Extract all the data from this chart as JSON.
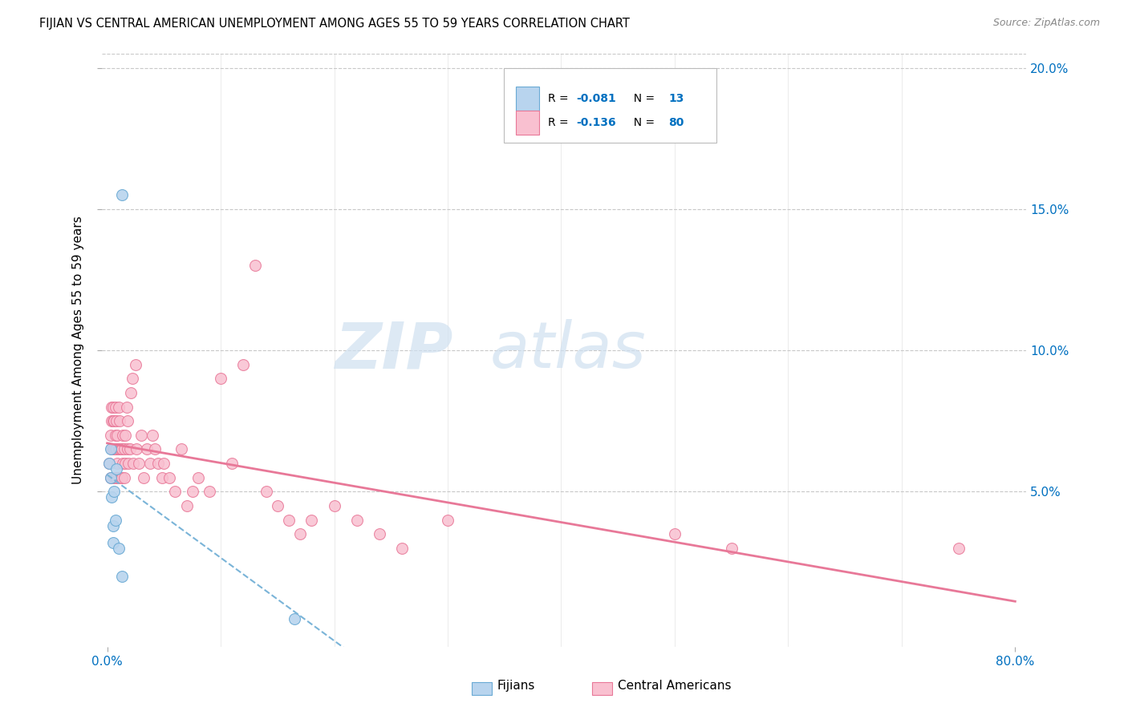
{
  "title": "FIJIAN VS CENTRAL AMERICAN UNEMPLOYMENT AMONG AGES 55 TO 59 YEARS CORRELATION CHART",
  "source": "Source: ZipAtlas.com",
  "ylabel": "Unemployment Among Ages 55 to 59 years",
  "fijian_color": "#b8d4ee",
  "fijian_edge_color": "#6aaad4",
  "central_color": "#f9c0d0",
  "central_edge_color": "#e87898",
  "trend_fijian_color": "#7ab4d8",
  "trend_central_color": "#e87898",
  "R_fijian": -0.081,
  "N_fijian": 13,
  "R_central": -0.136,
  "N_central": 80,
  "fijian_x": [
    0.002,
    0.003,
    0.003,
    0.004,
    0.005,
    0.005,
    0.006,
    0.007,
    0.008,
    0.01,
    0.013,
    0.013,
    0.165
  ],
  "fijian_y": [
    0.06,
    0.065,
    0.055,
    0.048,
    0.038,
    0.032,
    0.05,
    0.04,
    0.058,
    0.03,
    0.02,
    0.155,
    0.005
  ],
  "central_x": [
    0.002,
    0.003,
    0.003,
    0.004,
    0.004,
    0.004,
    0.005,
    0.005,
    0.005,
    0.006,
    0.006,
    0.006,
    0.007,
    0.007,
    0.007,
    0.007,
    0.008,
    0.008,
    0.008,
    0.009,
    0.009,
    0.01,
    0.01,
    0.01,
    0.011,
    0.011,
    0.012,
    0.012,
    0.013,
    0.013,
    0.014,
    0.014,
    0.015,
    0.015,
    0.016,
    0.016,
    0.017,
    0.018,
    0.018,
    0.019,
    0.02,
    0.021,
    0.022,
    0.023,
    0.025,
    0.026,
    0.028,
    0.03,
    0.032,
    0.035,
    0.038,
    0.04,
    0.042,
    0.045,
    0.048,
    0.05,
    0.055,
    0.06,
    0.065,
    0.07,
    0.075,
    0.08,
    0.09,
    0.1,
    0.11,
    0.12,
    0.13,
    0.14,
    0.15,
    0.16,
    0.17,
    0.18,
    0.2,
    0.22,
    0.24,
    0.26,
    0.3,
    0.5,
    0.55,
    0.75
  ],
  "central_y": [
    0.06,
    0.055,
    0.07,
    0.065,
    0.075,
    0.08,
    0.065,
    0.075,
    0.08,
    0.055,
    0.065,
    0.075,
    0.055,
    0.065,
    0.07,
    0.08,
    0.055,
    0.065,
    0.075,
    0.06,
    0.07,
    0.055,
    0.065,
    0.08,
    0.065,
    0.075,
    0.055,
    0.065,
    0.055,
    0.065,
    0.06,
    0.07,
    0.055,
    0.065,
    0.06,
    0.07,
    0.08,
    0.065,
    0.075,
    0.06,
    0.065,
    0.085,
    0.09,
    0.06,
    0.095,
    0.065,
    0.06,
    0.07,
    0.055,
    0.065,
    0.06,
    0.07,
    0.065,
    0.06,
    0.055,
    0.06,
    0.055,
    0.05,
    0.065,
    0.045,
    0.05,
    0.055,
    0.05,
    0.09,
    0.06,
    0.095,
    0.13,
    0.05,
    0.045,
    0.04,
    0.035,
    0.04,
    0.045,
    0.04,
    0.035,
    0.03,
    0.04,
    0.035,
    0.03,
    0.03
  ],
  "xlim": [
    0.0,
    0.8
  ],
  "ylim": [
    0.0,
    0.205
  ],
  "yticks": [
    0.05,
    0.1,
    0.15,
    0.2
  ],
  "ytick_labels": [
    "5.0%",
    "10.0%",
    "15.0%",
    "20.0%"
  ],
  "axis_color": "#0070c0",
  "grid_color": "#c8c8c8",
  "marker_size": 100
}
